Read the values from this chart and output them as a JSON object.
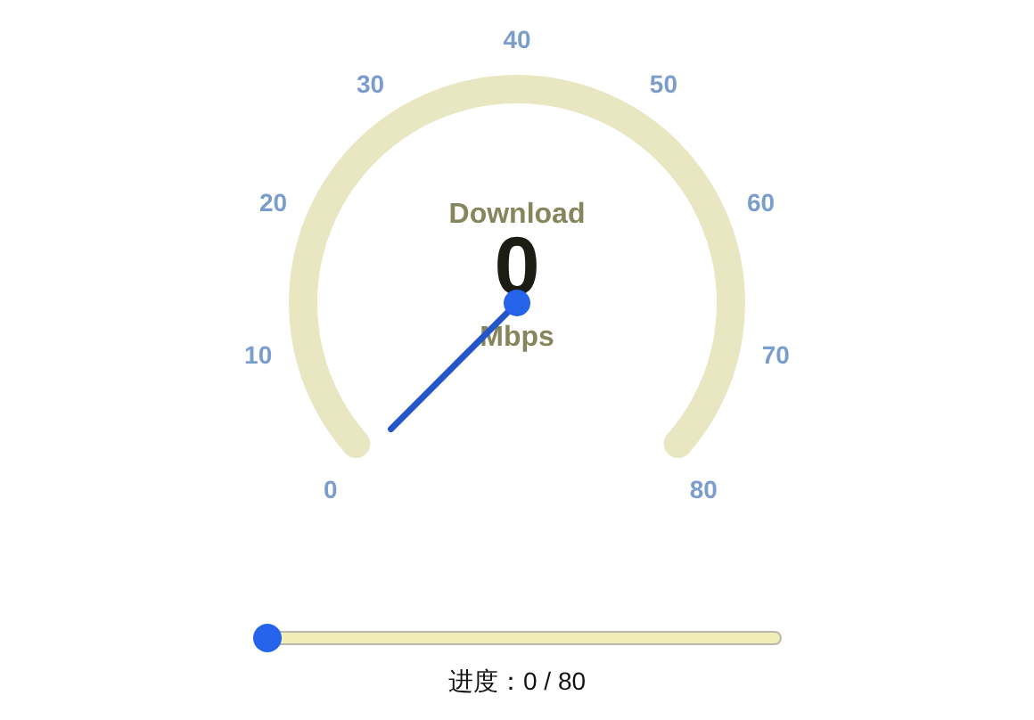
{
  "chart_data": {
    "type": "other",
    "values": [
      0
    ],
    "needle": "0",
    "color": "#2456c8",
    "data_labels": true,
    "annotations": [
      "Download",
      "Mbps",
      "进度：0 / 80",
      "0",
      "10",
      "20",
      "30",
      "40",
      "50",
      "60",
      "70",
      "80"
    ]
  }
}
